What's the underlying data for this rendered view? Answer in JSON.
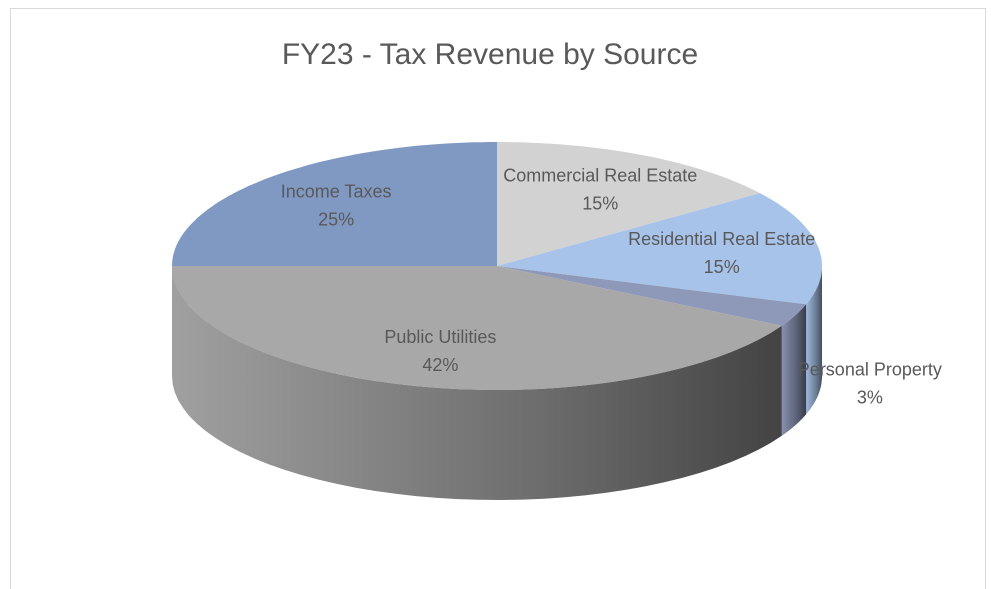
{
  "chart_data": {
    "type": "pie",
    "title": "FY23 - Tax Revenue by Source",
    "categories": [
      "Commercial Real Estate",
      "Residential Real Estate",
      "Personal Property",
      "Public Utilities",
      "Income Taxes"
    ],
    "values": [
      15,
      15,
      3,
      42,
      25
    ],
    "value_labels": [
      "15%",
      "15%",
      "3%",
      "42%",
      "25%"
    ],
    "colors": [
      "#d2d2d2",
      "#a7c3e9",
      "#8e98b8",
      "#a8a8a8",
      "#8099c2"
    ]
  }
}
